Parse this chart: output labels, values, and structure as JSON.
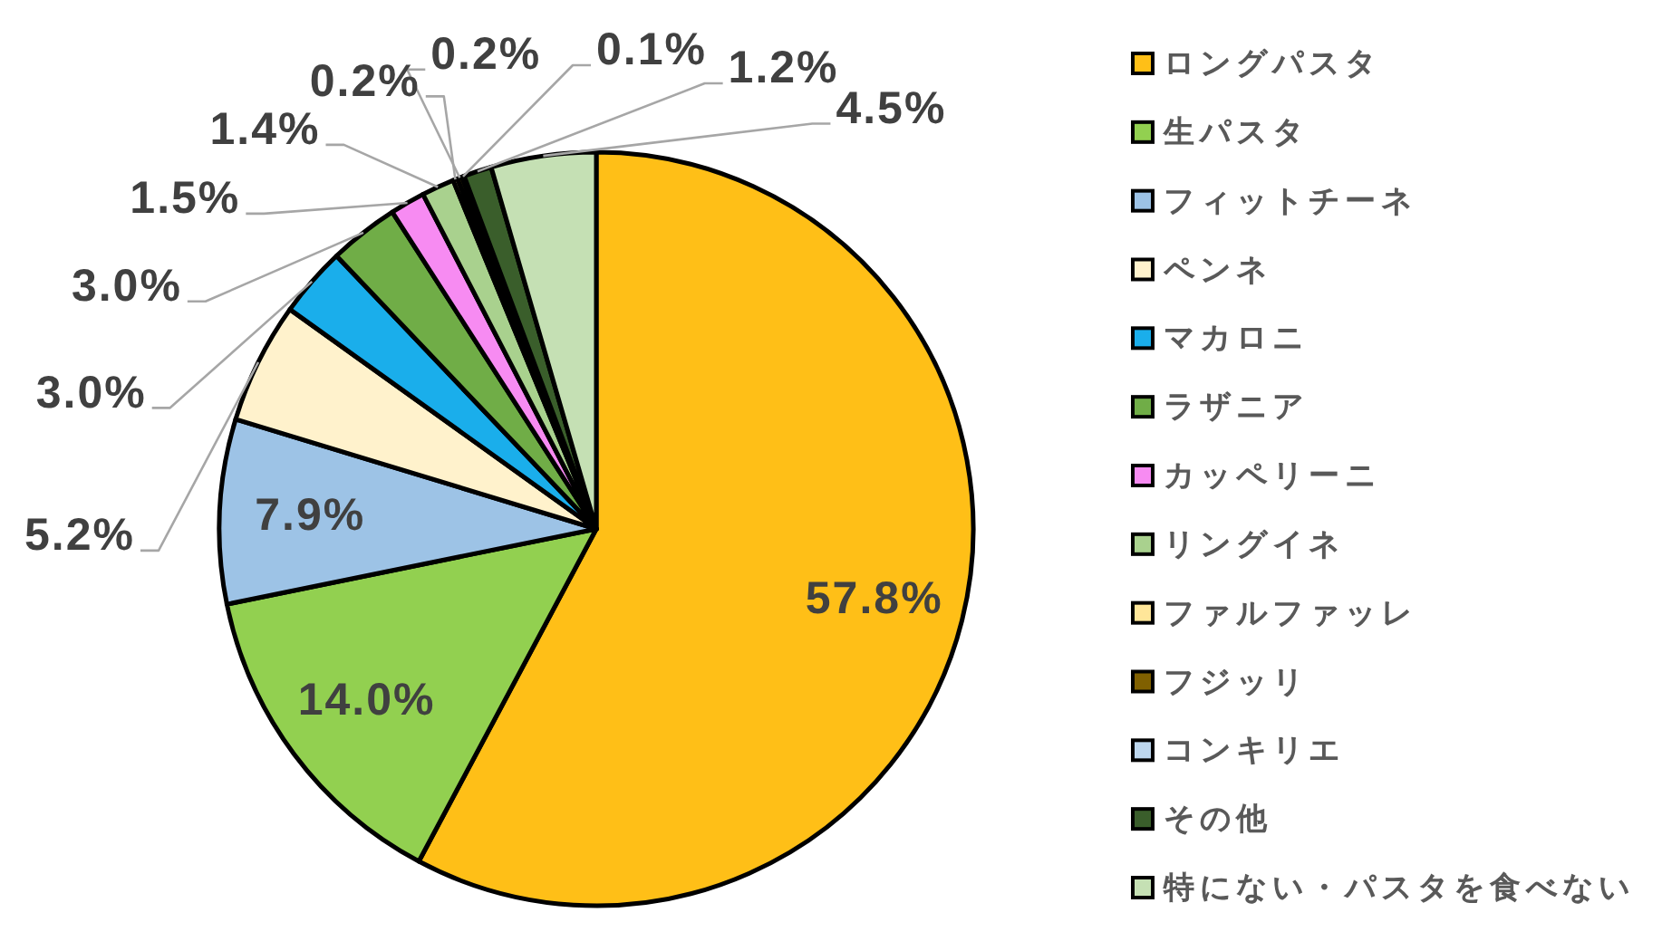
{
  "chart_data": {
    "type": "pie",
    "categories": [
      "ロングパスタ",
      "生パスタ",
      "フィットチーネ",
      "ペンネ",
      "マカロニ",
      "ラザニア",
      "カッペリーニ",
      "リングイネ",
      "ファルファッレ",
      "フジッリ",
      "コンキリエ",
      "その他",
      "特にない・パスタを食べない"
    ],
    "values": [
      57.8,
      14.0,
      7.9,
      5.2,
      3.0,
      3.0,
      1.5,
      1.4,
      0.2,
      0.2,
      0.1,
      1.2,
      4.5
    ],
    "colors": [
      "#ffbf17",
      "#92d050",
      "#9dc3e6",
      "#fff2cc",
      "#1aaeeb",
      "#70ad47",
      "#f78bf2",
      "#a9d18e",
      "#ffe699",
      "#806000",
      "#bdd7ee",
      "#3a5e2b",
      "#c5e0b4"
    ],
    "value_labels": [
      "57.8%",
      "14.0%",
      "7.9%",
      "5.2%",
      "3.0%",
      "3.0%",
      "1.5%",
      "1.4%",
      "0.2%",
      "0.2%",
      "0.1%",
      "1.2%",
      "4.5%"
    ],
    "legend": "right"
  }
}
